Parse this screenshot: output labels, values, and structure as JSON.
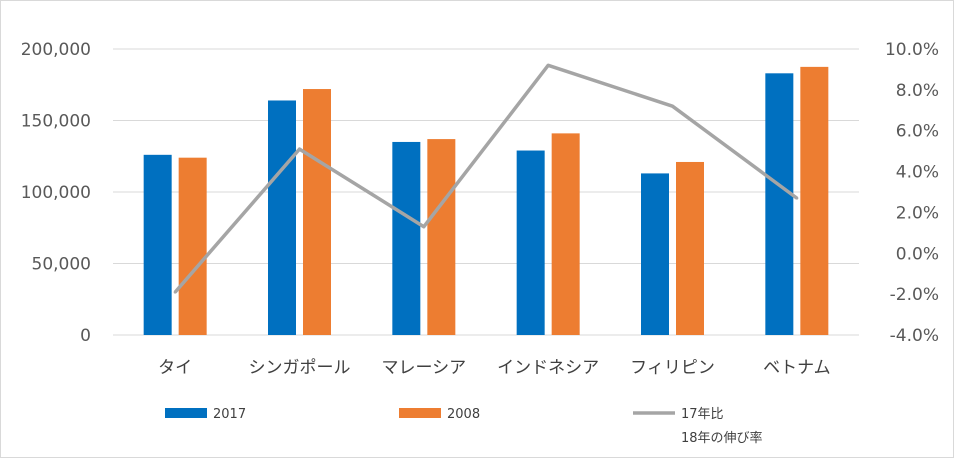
{
  "colors": {
    "series_2017": "#0070C0",
    "series_2008": "#ED7D31",
    "growth_line": "#A5A5A5",
    "gridline": "#D9D9D9",
    "axis_text": "#595959"
  },
  "chart_data": {
    "type": "bar",
    "categories": [
      "タイ",
      "シンガポール",
      "マレーシア",
      "インドネシア",
      "フィリピン",
      "ベトナム"
    ],
    "series": [
      {
        "name": "2017",
        "values": [
          126000,
          164000,
          135000,
          129000,
          113000,
          183000
        ]
      },
      {
        "name": "2008",
        "values": [
          124000,
          172000,
          137000,
          141000,
          121000,
          187500
        ]
      }
    ],
    "line_series": {
      "name": "17年比\n18年の伸び率",
      "axis": "right",
      "values": [
        -1.9,
        5.1,
        1.3,
        9.2,
        7.2,
        2.7
      ]
    },
    "y_left": {
      "min": 0,
      "max": 200000,
      "ticks": [
        "0",
        "50,000",
        "100,000",
        "150,000",
        "200,000"
      ]
    },
    "y_right": {
      "min": -4,
      "max": 10,
      "ticks": [
        "-4.0%",
        "-2.0%",
        "0.0%",
        "2.0%",
        "4.0%",
        "6.0%",
        "8.0%",
        "10.0%"
      ]
    },
    "grid": true,
    "legend": {
      "position": "bottom",
      "items": [
        {
          "label": "2017",
          "kind": "bar"
        },
        {
          "label": "2008",
          "kind": "bar"
        },
        {
          "label_lines": [
            "17年比",
            "18年の伸び率"
          ],
          "kind": "line"
        }
      ]
    }
  }
}
